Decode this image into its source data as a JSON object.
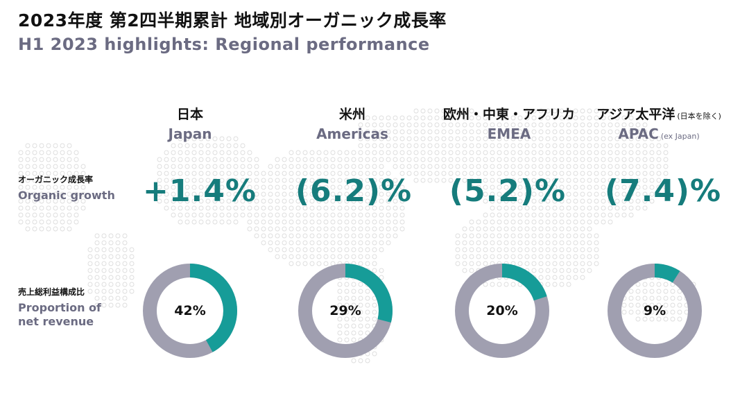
{
  "title_jp": "2023年度 第2四半期累計 地域別オーガニック成長率",
  "title_en": "H1 2023 highlights: Regional performance",
  "row_labels": {
    "growth_jp": "オーガニック成長率",
    "growth_en": "Organic growth",
    "share_jp": "売上総利益構成比",
    "share_en_line1": "Proportion of",
    "share_en_line2": "net revenue"
  },
  "regions": [
    {
      "jp": "日本",
      "en": "Japan",
      "jp_note": "",
      "en_note": "",
      "growth": "+1.4%",
      "share_label": "42%"
    },
    {
      "jp": "米州",
      "en": "Americas",
      "jp_note": "",
      "en_note": "",
      "growth": "(6.2)%",
      "share_label": "29%"
    },
    {
      "jp": "欧州・中東・アフリカ",
      "en": "EMEA",
      "jp_note": "",
      "en_note": "",
      "growth": "(5.2)%",
      "share_label": "20%"
    },
    {
      "jp": "アジア太平洋",
      "en": "APAC",
      "jp_note": "(日本を除く)",
      "en_note": "(ex Japan)",
      "growth": "(7.4)%",
      "share_label": "9%"
    }
  ],
  "colors": {
    "teal": "#169c98",
    "gray": "#a09fb0",
    "growth_text": "#167c7c",
    "map_dot": "#dedede"
  },
  "chart_data": [
    {
      "type": "table",
      "title": "Organic growth",
      "categories": [
        "Japan",
        "Americas",
        "EMEA",
        "APAC"
      ],
      "values": [
        1.4,
        -6.2,
        -5.2,
        -7.4
      ]
    },
    {
      "type": "pie",
      "title": "Proportion of net revenue",
      "categories": [
        "Japan",
        "Americas",
        "EMEA",
        "APAC"
      ],
      "values": [
        42,
        29,
        20,
        9
      ]
    }
  ]
}
